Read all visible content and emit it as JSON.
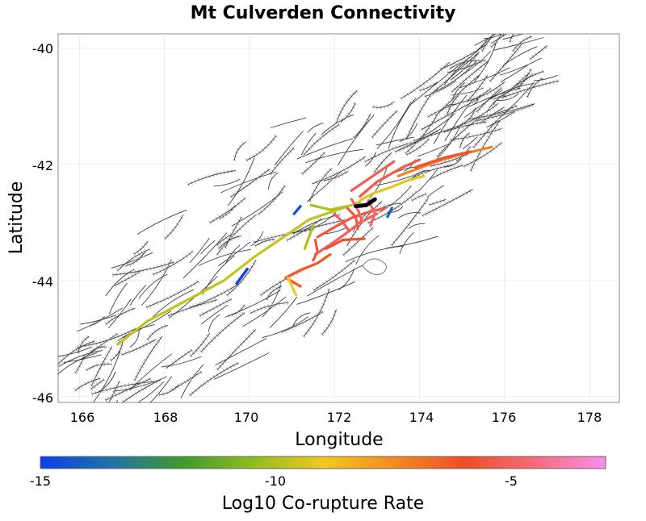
{
  "title": "Mt Culverden Connectivity",
  "x_axis": {
    "label": "Longitude",
    "ticks": [
      "166",
      "168",
      "170",
      "172",
      "174",
      "176",
      "178"
    ]
  },
  "y_axis": {
    "label": "Latitude",
    "ticks": [
      "-40",
      "-42",
      "-44",
      "-46"
    ]
  },
  "colorbar": {
    "label": "Log10 Co-rupture Rate",
    "ticks": [
      "-15",
      "-10",
      "-5"
    ],
    "range": [
      -15,
      -3
    ],
    "colors": [
      "#0a3fe8",
      "#1e73a8",
      "#3f9a2c",
      "#8fbc1e",
      "#f2c821",
      "#f58a1e",
      "#ee4e24",
      "#f86a7a",
      "#fb8fea"
    ]
  },
  "chart_data": {
    "type": "map",
    "title": "Mt Culverden Connectivity",
    "xlabel": "Longitude",
    "ylabel": "Latitude",
    "xlim": [
      165.5,
      178.7
    ],
    "ylim": [
      -46.1,
      -39.75
    ],
    "grid": true,
    "colorbar_range": [
      -15,
      -3
    ],
    "source_section": {
      "name": "",
      "path": [
        [
          172.5,
          -42.72
        ],
        [
          172.75,
          -42.7
        ],
        [
          172.95,
          -42.6
        ]
      ],
      "color": "#000000"
    },
    "ruptures": [
      {
        "path": [
          [
            166.9,
            -45.1
          ],
          [
            167.6,
            -44.7
          ],
          [
            168.5,
            -44.35
          ],
          [
            169.4,
            -44.0
          ],
          [
            170.1,
            -43.6
          ],
          [
            170.8,
            -43.25
          ],
          [
            171.4,
            -42.95
          ],
          [
            172.0,
            -42.8
          ],
          [
            172.6,
            -42.65
          ]
        ],
        "value": -9.7
      },
      {
        "path": [
          [
            172.6,
            -42.62
          ],
          [
            172.9,
            -42.5
          ],
          [
            173.3,
            -42.4
          ],
          [
            173.7,
            -42.28
          ],
          [
            174.1,
            -42.2
          ]
        ],
        "value": -9.2
      },
      {
        "path": [
          [
            172.6,
            -42.55
          ],
          [
            173.0,
            -42.3
          ],
          [
            173.6,
            -42.05
          ],
          [
            174.0,
            -41.92
          ]
        ],
        "value": -5.4
      },
      {
        "path": [
          [
            172.4,
            -42.45
          ],
          [
            172.9,
            -42.2
          ],
          [
            173.4,
            -41.95
          ]
        ],
        "value": -5.2
      },
      {
        "path": [
          [
            173.5,
            -42.2
          ],
          [
            174.4,
            -41.95
          ],
          [
            175.0,
            -41.82
          ],
          [
            175.7,
            -41.7
          ]
        ],
        "value": -7.2
      },
      {
        "path": [
          [
            173.9,
            -42.05
          ],
          [
            174.6,
            -41.88
          ],
          [
            175.2,
            -41.78
          ]
        ],
        "value": -5.8
      },
      {
        "path": [
          [
            171.6,
            -43.25
          ],
          [
            172.0,
            -43.08
          ],
          [
            172.4,
            -42.92
          ],
          [
            172.8,
            -42.82
          ],
          [
            173.2,
            -42.75
          ]
        ],
        "value": -5.5
      },
      {
        "path": [
          [
            171.55,
            -43.55
          ],
          [
            171.9,
            -43.38
          ],
          [
            172.25,
            -43.2
          ],
          [
            172.6,
            -43.0
          ],
          [
            173.0,
            -42.85
          ]
        ],
        "value": -5.0
      },
      {
        "path": [
          [
            171.55,
            -43.3
          ],
          [
            171.6,
            -43.5
          ],
          [
            171.5,
            -43.65
          ]
        ],
        "value": -5.6
      },
      {
        "path": [
          [
            171.8,
            -43.45
          ],
          [
            172.2,
            -43.3
          ],
          [
            172.7,
            -43.28
          ]
        ],
        "value": -5.9
      },
      {
        "path": [
          [
            172.0,
            -42.85
          ],
          [
            172.2,
            -43.0
          ],
          [
            172.35,
            -43.15
          ]
        ],
        "value": -5.1
      },
      {
        "path": [
          [
            172.3,
            -42.75
          ],
          [
            172.5,
            -42.9
          ],
          [
            172.55,
            -43.1
          ]
        ],
        "value": -5.4
      },
      {
        "path": [
          [
            172.8,
            -42.62
          ],
          [
            172.95,
            -42.85
          ],
          [
            172.85,
            -43.05
          ]
        ],
        "value": -4.8
      },
      {
        "path": [
          [
            172.4,
            -42.6
          ],
          [
            172.55,
            -42.78
          ],
          [
            172.65,
            -42.98
          ]
        ],
        "value": -4.9
      },
      {
        "path": [
          [
            171.9,
            -43.55
          ],
          [
            171.6,
            -43.7
          ],
          [
            171.2,
            -43.82
          ],
          [
            170.85,
            -43.95
          ],
          [
            171.2,
            -44.1
          ]
        ],
        "value": -6.3
      },
      {
        "path": [
          [
            170.9,
            -43.95
          ],
          [
            171.0,
            -44.1
          ],
          [
            171.1,
            -44.25
          ]
        ],
        "value": -9.0
      },
      {
        "path": [
          [
            171.45,
            -42.7
          ],
          [
            171.9,
            -42.78
          ],
          [
            172.3,
            -42.72
          ]
        ],
        "value": -10.0
      },
      {
        "path": [
          [
            171.5,
            -43.05
          ],
          [
            171.4,
            -43.25
          ],
          [
            171.3,
            -43.45
          ]
        ],
        "value": -10.0
      },
      {
        "path": [
          [
            173.25,
            -42.9
          ],
          [
            173.35,
            -42.75
          ]
        ],
        "value": -14.0
      },
      {
        "path": [
          [
            169.7,
            -44.05
          ],
          [
            169.95,
            -43.8
          ]
        ],
        "value": -15.0
      },
      {
        "path": [
          [
            171.05,
            -42.85
          ],
          [
            171.2,
            -42.72
          ]
        ],
        "value": -14.5
      }
    ]
  }
}
